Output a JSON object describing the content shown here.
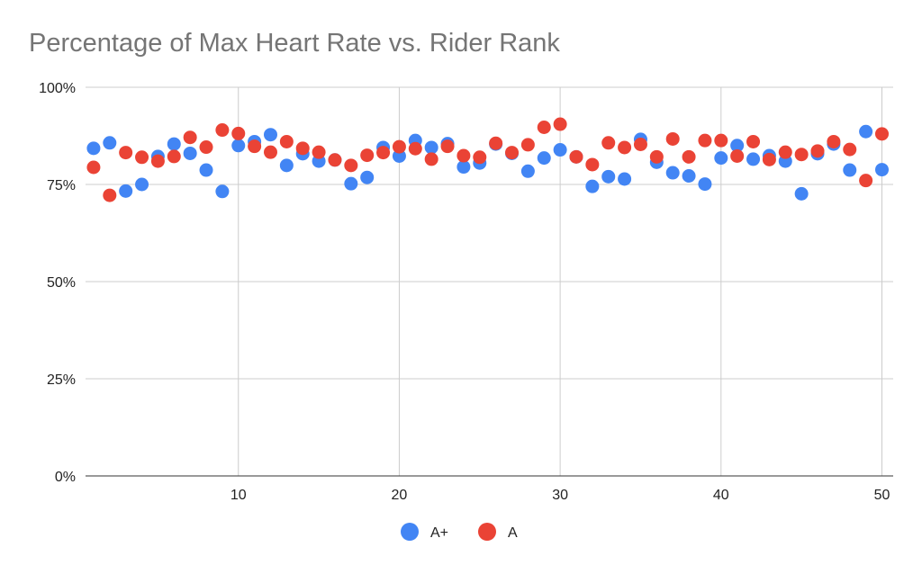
{
  "chart_data": {
    "type": "scatter",
    "title": "Percentage of Max Heart Rate vs. Rider Rank",
    "xlabel": "",
    "ylabel": "",
    "xlim": [
      0.5,
      50.7
    ],
    "ylim": [
      0,
      100
    ],
    "x_ticks": [
      10,
      20,
      30,
      40,
      50
    ],
    "y_ticks": [
      0,
      25,
      50,
      75,
      100
    ],
    "x_tick_labels": [
      "10",
      "20",
      "30",
      "40",
      "50"
    ],
    "y_tick_labels": [
      "0%",
      "25%",
      "50%",
      "75%",
      "100%"
    ],
    "grid": true,
    "legend_position": "bottom",
    "series": [
      {
        "name": "A+",
        "color": "#4285f4",
        "x": [
          1,
          2,
          3,
          4,
          5,
          6,
          7,
          8,
          9,
          10,
          11,
          12,
          13,
          14,
          15,
          16,
          17,
          18,
          19,
          20,
          21,
          22,
          23,
          24,
          25,
          26,
          27,
          28,
          29,
          30,
          31,
          32,
          33,
          34,
          35,
          36,
          37,
          38,
          39,
          40,
          41,
          42,
          43,
          44,
          45,
          46,
          47,
          48,
          49,
          50
        ],
        "y": [
          84.3,
          85.7,
          73.3,
          75.0,
          82.2,
          85.4,
          83.0,
          78.7,
          73.2,
          85.0,
          86.0,
          87.8,
          79.9,
          82.9,
          81.0,
          81.3,
          75.2,
          76.8,
          84.5,
          82.3,
          86.3,
          84.5,
          85.5,
          79.5,
          80.5,
          85.4,
          83.0,
          78.4,
          81.8,
          83.9,
          82.1,
          74.5,
          77.0,
          76.4,
          86.6,
          80.7,
          78.0,
          77.2,
          75.1,
          81.8,
          85.0,
          81.5,
          82.4,
          81.0,
          72.6,
          82.9,
          85.4,
          78.7,
          88.6,
          78.8
        ]
      },
      {
        "name": "A",
        "color": "#ea4335",
        "x": [
          1,
          2,
          3,
          4,
          5,
          6,
          7,
          8,
          9,
          10,
          11,
          12,
          13,
          14,
          15,
          16,
          17,
          18,
          19,
          20,
          21,
          22,
          23,
          24,
          25,
          26,
          27,
          28,
          29,
          30,
          31,
          32,
          33,
          34,
          35,
          36,
          37,
          38,
          39,
          40,
          41,
          42,
          43,
          44,
          45,
          46,
          47,
          48,
          49,
          50
        ],
        "y": [
          79.4,
          72.2,
          83.2,
          82.0,
          81.0,
          82.2,
          87.1,
          84.6,
          89.0,
          88.1,
          84.8,
          83.3,
          86.0,
          84.3,
          83.3,
          81.3,
          79.9,
          82.5,
          83.2,
          84.7,
          84.2,
          81.5,
          84.8,
          82.4,
          82.0,
          85.6,
          83.2,
          85.2,
          89.7,
          90.5,
          82.1,
          80.1,
          85.7,
          84.5,
          85.3,
          82.1,
          86.7,
          82.1,
          86.3,
          86.3,
          82.3,
          86.0,
          81.4,
          83.3,
          82.7,
          83.6,
          86.0,
          84.0,
          76.0,
          88.0
        ]
      }
    ]
  }
}
